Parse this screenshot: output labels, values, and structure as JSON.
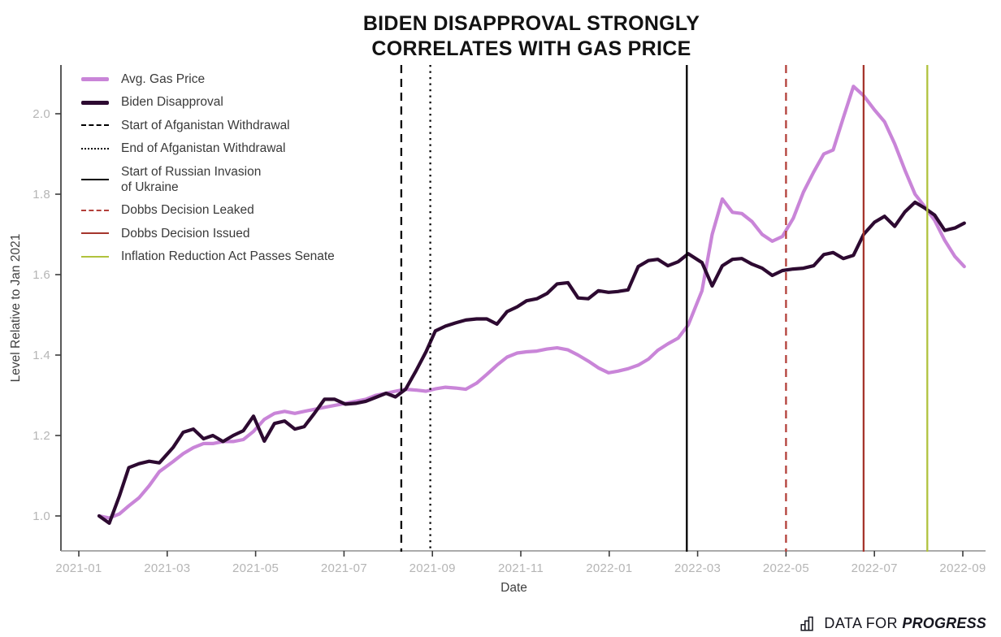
{
  "title": {
    "line1": "BIDEN DISAPPROVAL STRONGLY",
    "line2": "CORRELATES WITH GAS PRICE"
  },
  "footer": {
    "brand_prefix": "DATA FOR ",
    "brand_suffix": "PROGRESS"
  },
  "chart_data": {
    "type": "line",
    "title": "BIDEN DISAPPROVAL STRONGLY CORRELATES WITH GAS PRICE",
    "xlabel": "Date",
    "ylabel": "Level Relative to Jan 2021",
    "x_tick_labels": [
      "2021-01",
      "2021-03",
      "2021-05",
      "2021-07",
      "2021-09",
      "2021-11",
      "2022-01",
      "2022-03",
      "2022-05",
      "2022-07",
      "2022-09"
    ],
    "x_tick_months": [
      0,
      2,
      4,
      6,
      8,
      10,
      12,
      14,
      16,
      18,
      20
    ],
    "y_ticks": [
      "1.0",
      "1.2",
      "1.4",
      "1.6",
      "1.8",
      "2.0"
    ],
    "ylim": [
      0.91,
      2.12
    ],
    "grid": false,
    "legend_position": "upper left",
    "colors": {
      "gas": "#c985d8",
      "disapproval": "#2d0a31",
      "black_event": "#000000",
      "dobbs_leaked": "#b3403a",
      "dobbs_issued": "#a5352c",
      "ira": "#b0c23d",
      "tick_label": "#b5b5b5",
      "axis_label": "#404040",
      "title": "#121212"
    },
    "series": [
      {
        "name": "Avg. Gas Price",
        "label_lines": [
          "Avg. Gas Price"
        ],
        "color": "#c985d8",
        "style": "solid",
        "points": [
          [
            "2021-01-15",
            1.0
          ],
          [
            "2021-01-22",
            0.995
          ],
          [
            "2021-01-29",
            1.005
          ],
          [
            "2021-02-05",
            1.025
          ],
          [
            "2021-02-12",
            1.045
          ],
          [
            "2021-02-19",
            1.075
          ],
          [
            "2021-02-26",
            1.11
          ],
          [
            "2021-03-05",
            1.135
          ],
          [
            "2021-03-12",
            1.155
          ],
          [
            "2021-03-19",
            1.17
          ],
          [
            "2021-03-26",
            1.18
          ],
          [
            "2021-04-02",
            1.18
          ],
          [
            "2021-04-09",
            1.185
          ],
          [
            "2021-04-16",
            1.185
          ],
          [
            "2021-04-23",
            1.19
          ],
          [
            "2021-04-30",
            1.21
          ],
          [
            "2021-05-07",
            1.24
          ],
          [
            "2021-05-14",
            1.255
          ],
          [
            "2021-05-21",
            1.26
          ],
          [
            "2021-05-28",
            1.255
          ],
          [
            "2021-06-04",
            1.26
          ],
          [
            "2021-06-11",
            1.265
          ],
          [
            "2021-06-18",
            1.27
          ],
          [
            "2021-06-25",
            1.275
          ],
          [
            "2021-07-02",
            1.28
          ],
          [
            "2021-07-09",
            1.285
          ],
          [
            "2021-07-16",
            1.29
          ],
          [
            "2021-07-23",
            1.3
          ],
          [
            "2021-07-30",
            1.305
          ],
          [
            "2021-08-06",
            1.31
          ],
          [
            "2021-08-13",
            1.315
          ],
          [
            "2021-08-20",
            1.313
          ],
          [
            "2021-08-27",
            1.31
          ],
          [
            "2021-09-03",
            1.316
          ],
          [
            "2021-09-10",
            1.32
          ],
          [
            "2021-09-17",
            1.318
          ],
          [
            "2021-09-24",
            1.315
          ],
          [
            "2021-10-01",
            1.33
          ],
          [
            "2021-10-08",
            1.352
          ],
          [
            "2021-10-15",
            1.375
          ],
          [
            "2021-10-22",
            1.395
          ],
          [
            "2021-10-29",
            1.405
          ],
          [
            "2021-11-05",
            1.408
          ],
          [
            "2021-11-12",
            1.41
          ],
          [
            "2021-11-19",
            1.415
          ],
          [
            "2021-11-26",
            1.418
          ],
          [
            "2021-12-03",
            1.413
          ],
          [
            "2021-12-10",
            1.4
          ],
          [
            "2021-12-17",
            1.385
          ],
          [
            "2021-12-24",
            1.368
          ],
          [
            "2021-12-31",
            1.356
          ],
          [
            "2022-01-07",
            1.36
          ],
          [
            "2022-01-14",
            1.366
          ],
          [
            "2022-01-21",
            1.375
          ],
          [
            "2022-01-28",
            1.39
          ],
          [
            "2022-02-04",
            1.412
          ],
          [
            "2022-02-11",
            1.428
          ],
          [
            "2022-02-18",
            1.442
          ],
          [
            "2022-02-25",
            1.475
          ],
          [
            "2022-03-04",
            1.56
          ],
          [
            "2022-03-11",
            1.7
          ],
          [
            "2022-03-18",
            1.788
          ],
          [
            "2022-03-25",
            1.755
          ],
          [
            "2022-04-01",
            1.752
          ],
          [
            "2022-04-08",
            1.732
          ],
          [
            "2022-04-15",
            1.7
          ],
          [
            "2022-04-22",
            1.683
          ],
          [
            "2022-04-29",
            1.695
          ],
          [
            "2022-05-06",
            1.74
          ],
          [
            "2022-05-13",
            1.805
          ],
          [
            "2022-05-20",
            1.855
          ],
          [
            "2022-05-27",
            1.9
          ],
          [
            "2022-06-03",
            1.91
          ],
          [
            "2022-06-10",
            1.99
          ],
          [
            "2022-06-17",
            2.068
          ],
          [
            "2022-06-24",
            2.045
          ],
          [
            "2022-07-01",
            2.01
          ],
          [
            "2022-07-08",
            1.98
          ],
          [
            "2022-07-15",
            1.925
          ],
          [
            "2022-07-22",
            1.86
          ],
          [
            "2022-07-29",
            1.8
          ],
          [
            "2022-08-05",
            1.77
          ],
          [
            "2022-08-12",
            1.735
          ],
          [
            "2022-08-19",
            1.685
          ],
          [
            "2022-08-26",
            1.645
          ],
          [
            "2022-09-02",
            1.62
          ]
        ]
      },
      {
        "name": "Biden Disapproval",
        "label_lines": [
          "Biden Disapproval"
        ],
        "color": "#2d0a31",
        "style": "solid",
        "points": [
          [
            "2021-01-15",
            1.0
          ],
          [
            "2021-01-22",
            0.982
          ],
          [
            "2021-01-29",
            1.05
          ],
          [
            "2021-02-05",
            1.12
          ],
          [
            "2021-02-12",
            1.13
          ],
          [
            "2021-02-19",
            1.136
          ],
          [
            "2021-02-26",
            1.132
          ],
          [
            "2021-03-05",
            1.17
          ],
          [
            "2021-03-12",
            1.208
          ],
          [
            "2021-03-19",
            1.216
          ],
          [
            "2021-03-26",
            1.192
          ],
          [
            "2021-04-02",
            1.2
          ],
          [
            "2021-04-09",
            1.185
          ],
          [
            "2021-04-16",
            1.2
          ],
          [
            "2021-04-23",
            1.212
          ],
          [
            "2021-04-30",
            1.248
          ],
          [
            "2021-05-07",
            1.186
          ],
          [
            "2021-05-14",
            1.23
          ],
          [
            "2021-05-21",
            1.236
          ],
          [
            "2021-05-28",
            1.216
          ],
          [
            "2021-06-04",
            1.222
          ],
          [
            "2021-06-11",
            1.255
          ],
          [
            "2021-06-18",
            1.29
          ],
          [
            "2021-06-25",
            1.29
          ],
          [
            "2021-07-02",
            1.278
          ],
          [
            "2021-07-09",
            1.28
          ],
          [
            "2021-07-16",
            1.285
          ],
          [
            "2021-07-23",
            1.295
          ],
          [
            "2021-07-30",
            1.305
          ],
          [
            "2021-08-06",
            1.296
          ],
          [
            "2021-08-13",
            1.315
          ],
          [
            "2021-08-20",
            1.36
          ],
          [
            "2021-08-27",
            1.408
          ],
          [
            "2021-09-03",
            1.46
          ],
          [
            "2021-09-10",
            1.472
          ],
          [
            "2021-09-17",
            1.48
          ],
          [
            "2021-09-24",
            1.487
          ],
          [
            "2021-10-01",
            1.49
          ],
          [
            "2021-10-08",
            1.49
          ],
          [
            "2021-10-15",
            1.477
          ],
          [
            "2021-10-22",
            1.508
          ],
          [
            "2021-10-29",
            1.52
          ],
          [
            "2021-11-05",
            1.535
          ],
          [
            "2021-11-12",
            1.54
          ],
          [
            "2021-11-19",
            1.553
          ],
          [
            "2021-11-26",
            1.577
          ],
          [
            "2021-12-03",
            1.58
          ],
          [
            "2021-12-10",
            1.542
          ],
          [
            "2021-12-17",
            1.54
          ],
          [
            "2021-12-24",
            1.56
          ],
          [
            "2021-12-31",
            1.556
          ],
          [
            "2022-01-07",
            1.558
          ],
          [
            "2022-01-14",
            1.562
          ],
          [
            "2022-01-21",
            1.62
          ],
          [
            "2022-01-28",
            1.635
          ],
          [
            "2022-02-04",
            1.638
          ],
          [
            "2022-02-11",
            1.622
          ],
          [
            "2022-02-18",
            1.632
          ],
          [
            "2022-02-25",
            1.652
          ],
          [
            "2022-03-04",
            1.63
          ],
          [
            "2022-03-11",
            1.572
          ],
          [
            "2022-03-18",
            1.622
          ],
          [
            "2022-03-25",
            1.638
          ],
          [
            "2022-04-01",
            1.64
          ],
          [
            "2022-04-08",
            1.626
          ],
          [
            "2022-04-15",
            1.616
          ],
          [
            "2022-04-22",
            1.598
          ],
          [
            "2022-04-29",
            1.61
          ],
          [
            "2022-05-06",
            1.614
          ],
          [
            "2022-05-13",
            1.616
          ],
          [
            "2022-05-20",
            1.622
          ],
          [
            "2022-05-27",
            1.65
          ],
          [
            "2022-06-03",
            1.655
          ],
          [
            "2022-06-10",
            1.64
          ],
          [
            "2022-06-17",
            1.648
          ],
          [
            "2022-06-24",
            1.7
          ],
          [
            "2022-07-01",
            1.73
          ],
          [
            "2022-07-08",
            1.745
          ],
          [
            "2022-07-15",
            1.72
          ],
          [
            "2022-07-22",
            1.756
          ],
          [
            "2022-07-29",
            1.78
          ],
          [
            "2022-08-05",
            1.766
          ],
          [
            "2022-08-12",
            1.748
          ],
          [
            "2022-08-19",
            1.71
          ],
          [
            "2022-08-26",
            1.716
          ],
          [
            "2022-09-02",
            1.728
          ]
        ]
      }
    ],
    "events": [
      {
        "name": "Start of Afganistan Withdrawal",
        "label_lines": [
          "Start of Afganistan Withdrawal"
        ],
        "date": "2021-08-10",
        "color": "#000000",
        "style": "dashed"
      },
      {
        "name": "End of Afganistan Withdrawal",
        "label_lines": [
          "End of Afganistan Withdrawal"
        ],
        "date": "2021-08-30",
        "color": "#000000",
        "style": "dotted"
      },
      {
        "name": "Start of Russian Invasion of Ukraine",
        "label_lines": [
          "Start of Russian Invasion",
          "of Ukraine"
        ],
        "date": "2022-02-24",
        "color": "#000000",
        "style": "solid"
      },
      {
        "name": "Dobbs Decision Leaked",
        "label_lines": [
          "Dobbs Decision Leaked"
        ],
        "date": "2022-05-01",
        "color": "#b3403a",
        "style": "dashed"
      },
      {
        "name": "Dobbs Decision Issued",
        "label_lines": [
          "Dobbs Decision Issued"
        ],
        "date": "2022-06-24",
        "color": "#a5352c",
        "style": "solid"
      },
      {
        "name": "Inflation Reduction Act Passes Senate",
        "label_lines": [
          "Inflation Reduction Act Passes Senate"
        ],
        "date": "2022-08-07",
        "color": "#b0c23d",
        "style": "solid"
      }
    ]
  }
}
